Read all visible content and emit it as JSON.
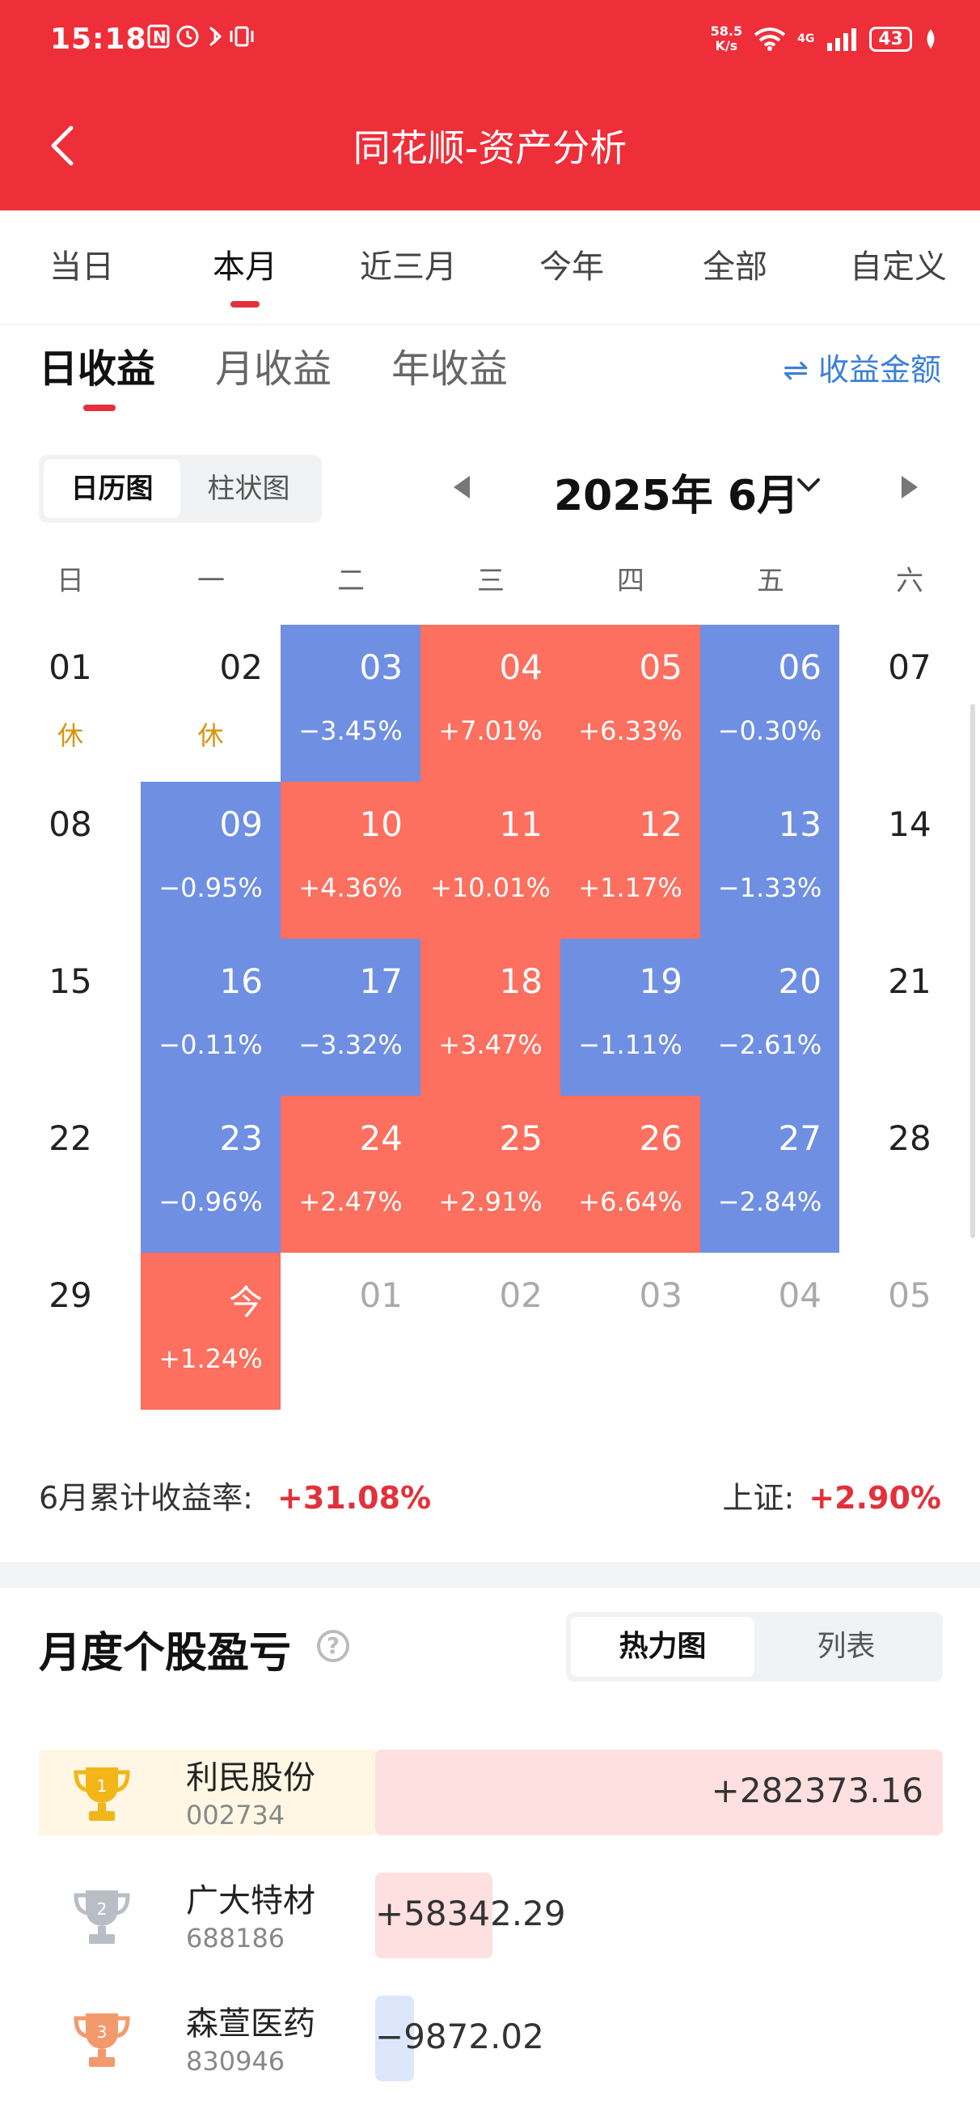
{
  "status": {
    "time": "15:18",
    "speed_top": "58.5",
    "speed_bottom": "K/s",
    "net": "4G",
    "battery": "43"
  },
  "header": {
    "title": "同花顺-资产分析"
  },
  "tabs": [
    "当日",
    "本月",
    "近三月",
    "今年",
    "全部",
    "自定义"
  ],
  "subtabs": [
    "日收益",
    "月收益",
    "年收益"
  ],
  "amount_toggle": "⇌ 收益金额",
  "view_toggle": [
    "日历图",
    "柱状图"
  ],
  "month_label": "2025年 6月",
  "weekdays": [
    "日",
    "一",
    "二",
    "三",
    "四",
    "五",
    "六"
  ],
  "calendar": [
    [
      {
        "d": "01",
        "r": "休",
        "t": "plain"
      },
      {
        "d": "02",
        "r": "休",
        "t": "plain"
      },
      {
        "d": "03",
        "r": "−3.45%",
        "t": "blue"
      },
      {
        "d": "04",
        "r": "+7.01%",
        "t": "red"
      },
      {
        "d": "05",
        "r": "+6.33%",
        "t": "red"
      },
      {
        "d": "06",
        "r": "−0.30%",
        "t": "blue"
      },
      {
        "d": "07",
        "r": "",
        "t": "plain"
      }
    ],
    [
      {
        "d": "08",
        "r": "",
        "t": "plain"
      },
      {
        "d": "09",
        "r": "−0.95%",
        "t": "blue"
      },
      {
        "d": "10",
        "r": "+4.36%",
        "t": "red"
      },
      {
        "d": "11",
        "r": "+10.01%",
        "t": "red"
      },
      {
        "d": "12",
        "r": "+1.17%",
        "t": "red"
      },
      {
        "d": "13",
        "r": "−1.33%",
        "t": "blue"
      },
      {
        "d": "14",
        "r": "",
        "t": "plain"
      }
    ],
    [
      {
        "d": "15",
        "r": "",
        "t": "plain"
      },
      {
        "d": "16",
        "r": "−0.11%",
        "t": "blue"
      },
      {
        "d": "17",
        "r": "−3.32%",
        "t": "blue"
      },
      {
        "d": "18",
        "r": "+3.47%",
        "t": "red"
      },
      {
        "d": "19",
        "r": "−1.11%",
        "t": "blue"
      },
      {
        "d": "20",
        "r": "−2.61%",
        "t": "blue"
      },
      {
        "d": "21",
        "r": "",
        "t": "plain"
      }
    ],
    [
      {
        "d": "22",
        "r": "",
        "t": "plain"
      },
      {
        "d": "23",
        "r": "−0.96%",
        "t": "blue"
      },
      {
        "d": "24",
        "r": "+2.47%",
        "t": "red"
      },
      {
        "d": "25",
        "r": "+2.91%",
        "t": "red"
      },
      {
        "d": "26",
        "r": "+6.64%",
        "t": "red"
      },
      {
        "d": "27",
        "r": "−2.84%",
        "t": "blue"
      },
      {
        "d": "28",
        "r": "",
        "t": "plain"
      }
    ],
    [
      {
        "d": "29",
        "r": "",
        "t": "plain"
      },
      {
        "d": "今",
        "r": "+1.24%",
        "t": "red"
      },
      {
        "d": "01",
        "r": "",
        "t": "gray"
      },
      {
        "d": "02",
        "r": "",
        "t": "gray"
      },
      {
        "d": "03",
        "r": "",
        "t": "gray"
      },
      {
        "d": "04",
        "r": "",
        "t": "gray"
      },
      {
        "d": "05",
        "r": "",
        "t": "gray"
      }
    ]
  ],
  "summary": {
    "label": "6月累计收益率:",
    "value": "+31.08%",
    "index_label": "上证:",
    "index_value": "+2.90%"
  },
  "section": {
    "title": "月度个股盈亏",
    "help": "?",
    "toggle": [
      "热力图",
      "列表"
    ]
  },
  "stocks": [
    {
      "rank": "1",
      "name": "利民股份",
      "code": "002734",
      "value": "+282373.16",
      "amount": 282373.16,
      "trophy_color": "#f2b619",
      "row_bg": "#fff7e3"
    },
    {
      "rank": "2",
      "name": "广大特材",
      "code": "688186",
      "value": "+58342.29",
      "amount": 58342.29,
      "trophy_color": "#b9bec6",
      "row_bg": "#ffffff"
    },
    {
      "rank": "3",
      "name": "森萱医药",
      "code": "830946",
      "value": "−9872.02",
      "amount": -9872.02,
      "trophy_color": "#f39a6c",
      "row_bg": "#ffffff"
    }
  ]
}
